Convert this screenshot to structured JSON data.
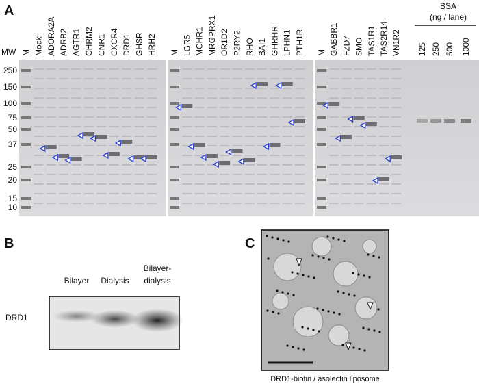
{
  "panel_a": {
    "label": "A",
    "mw_title": "MW",
    "mw": [
      250,
      150,
      100,
      75,
      50,
      37,
      25,
      20,
      15,
      10
    ],
    "gels": [
      {
        "lanes": [
          "M",
          "Mock",
          "ADORA2A",
          "ADRB2",
          "AGTR1",
          "CHRM2",
          "CNR1",
          "CXCR4",
          "DRD1",
          "GHSR",
          "HRH2"
        ]
      },
      {
        "lanes": [
          "M",
          "LGR5",
          "MCHR1",
          "MRGPRX1",
          "OR1D2",
          "P2RY2",
          "RHO",
          "BAI1",
          "GHRHR",
          "LPHN1",
          "PTH1R"
        ]
      },
      {
        "lanes": [
          "M",
          "GABBR1",
          "FZD7",
          "SMO",
          "TAS1R1",
          "TAS2R14",
          "VN1R2"
        ]
      }
    ],
    "bsa": {
      "title": "BSA",
      "unit": "(ng / lane)",
      "lanes": [
        125,
        250,
        500,
        1000
      ]
    }
  },
  "panel_b": {
    "label": "B",
    "columns": [
      [
        "Bilayer"
      ],
      [
        "Dialysis"
      ],
      [
        "Bilayer-",
        "dialysis"
      ]
    ],
    "row": "DRD1"
  },
  "panel_c": {
    "label": "C",
    "caption": "DRD1-biotin / asolectin liposome"
  }
}
